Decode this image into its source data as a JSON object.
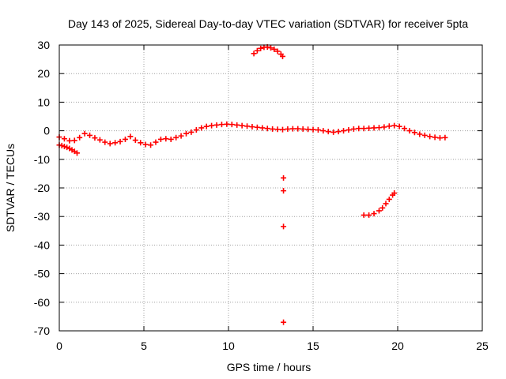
{
  "chart_data": {
    "type": "scatter",
    "title": "Day 143 of 2025, Sidereal Day-to-day VTEC variation (SDTVAR) for receiver 5pta",
    "xlabel": "GPS time / hours",
    "ylabel": "SDTVAR / TECUs",
    "xlim": [
      0,
      25
    ],
    "ylim": [
      -70,
      30
    ],
    "xticks": [
      0,
      5,
      10,
      15,
      20,
      25
    ],
    "yticks": [
      30,
      20,
      10,
      0,
      -10,
      -20,
      -30,
      -40,
      -50,
      -60,
      -70
    ],
    "grid": true,
    "marker": "+",
    "colors": {
      "series": "#ff0000",
      "grid": "#a0a0a0",
      "axes": "#000000",
      "background": "#ffffff"
    },
    "series": [
      {
        "name": "main_trace",
        "x": [
          0.0,
          0.3,
          0.6,
          0.9,
          1.2,
          1.5,
          1.8,
          2.1,
          2.4,
          2.7,
          3.0,
          3.3,
          3.6,
          3.9,
          4.2,
          4.5,
          4.8,
          5.1,
          5.4,
          5.7,
          6.0,
          6.3,
          6.6,
          6.9,
          7.2,
          7.5,
          7.8,
          8.1,
          8.4,
          8.7,
          9.0,
          9.3,
          9.6,
          9.9,
          10.2,
          10.5,
          10.8,
          11.1,
          11.4,
          11.7,
          12.0,
          12.3,
          12.6,
          12.9,
          13.2,
          13.5,
          13.8,
          14.1,
          14.4,
          14.7,
          15.0,
          15.3,
          15.6,
          15.9,
          16.2,
          16.5,
          16.8,
          17.1,
          17.4,
          17.7,
          18.0,
          18.3,
          18.6,
          18.9,
          19.2,
          19.5,
          19.8,
          20.1,
          20.4,
          20.7,
          21.0,
          21.3,
          21.6,
          21.9,
          22.2,
          22.5,
          22.8
        ],
        "y": [
          -2.2,
          -2.8,
          -3.5,
          -3.4,
          -2.4,
          -1.0,
          -1.6,
          -2.5,
          -3.2,
          -4.0,
          -4.5,
          -4.2,
          -3.8,
          -3.0,
          -2.0,
          -3.3,
          -4.2,
          -4.8,
          -5.0,
          -4.0,
          -3.0,
          -2.8,
          -3.0,
          -2.4,
          -1.8,
          -1.0,
          -0.5,
          0.3,
          1.0,
          1.5,
          1.8,
          2.0,
          2.2,
          2.3,
          2.2,
          2.0,
          1.8,
          1.6,
          1.4,
          1.2,
          1.0,
          0.8,
          0.6,
          0.5,
          0.4,
          0.6,
          0.7,
          0.7,
          0.6,
          0.5,
          0.4,
          0.3,
          0.0,
          -0.3,
          -0.5,
          -0.3,
          0.0,
          0.3,
          0.6,
          0.8,
          0.8,
          0.9,
          1.0,
          1.1,
          1.3,
          1.6,
          1.8,
          1.5,
          0.8,
          0.0,
          -0.6,
          -1.2,
          -1.6,
          -2.0,
          -2.3,
          -2.5,
          -2.4
        ]
      },
      {
        "name": "early_branch",
        "x": [
          0.0,
          0.15,
          0.3,
          0.45,
          0.6,
          0.75,
          0.9,
          1.05
        ],
        "y": [
          -5.0,
          -5.2,
          -5.5,
          -5.8,
          -6.2,
          -6.7,
          -7.2,
          -7.8
        ]
      },
      {
        "name": "noon_arc",
        "x": [
          11.5,
          11.7,
          11.9,
          12.1,
          12.3,
          12.5,
          12.7,
          12.9,
          13.1,
          13.2
        ],
        "y": [
          27.0,
          28.0,
          28.8,
          29.2,
          29.3,
          29.0,
          28.5,
          27.8,
          26.8,
          26.0
        ]
      },
      {
        "name": "isolated_points",
        "x": [
          13.25,
          13.25,
          13.25,
          13.25
        ],
        "y": [
          -16.5,
          -21.0,
          -33.5,
          -67.0
        ]
      },
      {
        "name": "late_arc",
        "x": [
          18.0,
          18.3,
          18.6,
          18.9,
          19.1,
          19.3,
          19.5,
          19.7,
          19.8
        ],
        "y": [
          -29.5,
          -29.5,
          -29.0,
          -28.0,
          -27.0,
          -25.5,
          -24.0,
          -22.5,
          -21.8
        ]
      }
    ]
  }
}
